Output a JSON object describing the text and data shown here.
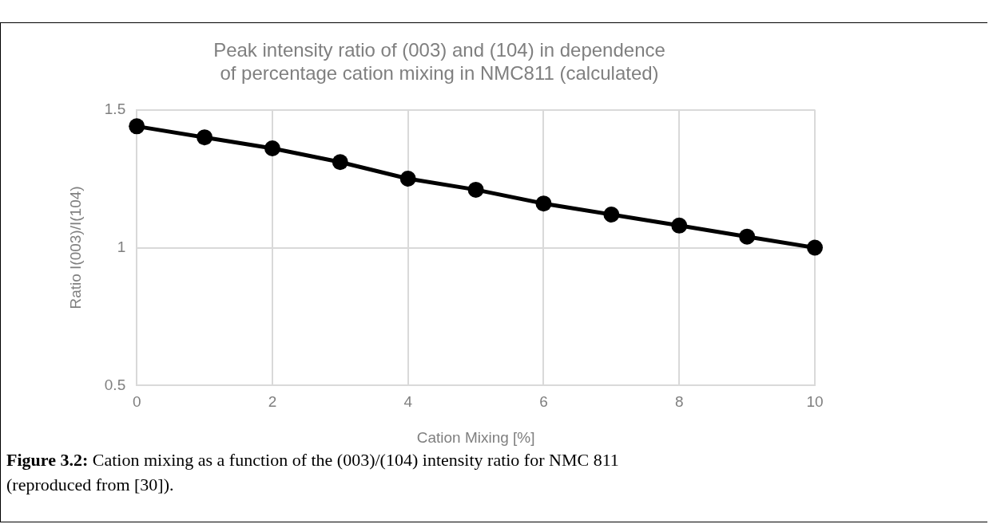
{
  "chart_data": {
    "type": "line",
    "title": "Peak intensity ratio of (003) and (104) in dependence of percentage cation mixing in NMC811 (calculated)",
    "xlabel": "Cation Mixing [%]",
    "ylabel": "Ratio I(003)/I(104)",
    "x": [
      0,
      1,
      2,
      3,
      4,
      5,
      6,
      7,
      8,
      9,
      10
    ],
    "series": [
      {
        "color": "#000000",
        "values": [
          1.44,
          1.4,
          1.36,
          1.31,
          1.25,
          1.21,
          1.16,
          1.12,
          1.08,
          1.04,
          1.0
        ]
      }
    ],
    "xlim": [
      0,
      10
    ],
    "xticks": [
      0,
      2,
      4,
      6,
      8,
      10
    ],
    "ylim": [
      0.5,
      1.5
    ],
    "yticks": [
      0.5,
      1,
      1.5
    ],
    "grid": true,
    "legend": false,
    "marker": "circle",
    "line_style": "solid",
    "annotations": [
      "Figure 3.2: Cation mixing as a function of the (003)/(104) intensity ratio for NMC 811 (reproduced from [30])."
    ]
  }
}
